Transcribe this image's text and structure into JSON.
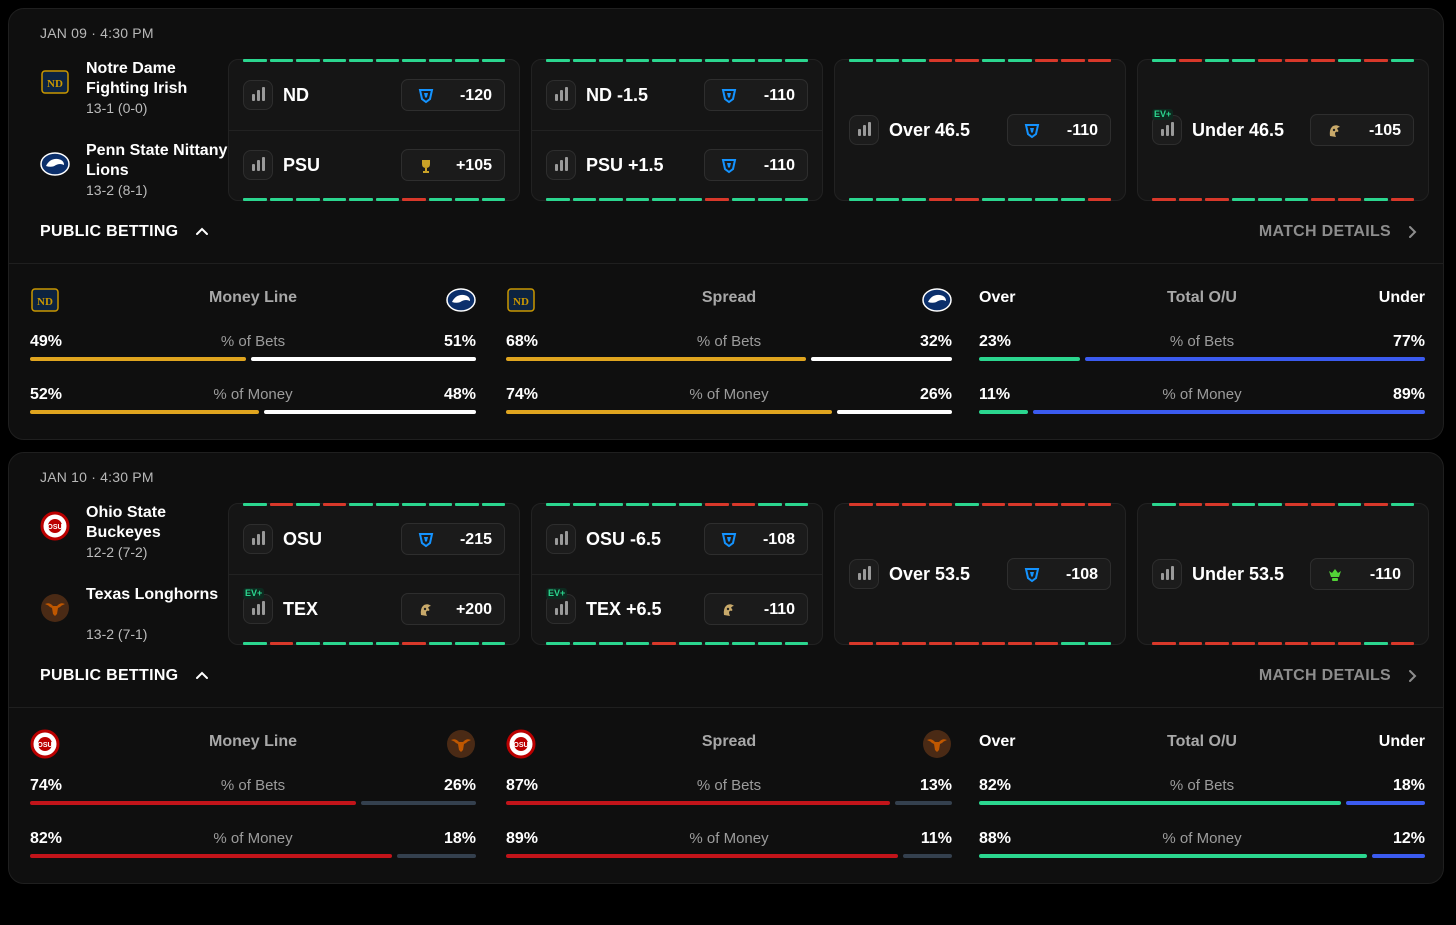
{
  "colors": {
    "green": "#2bd68f",
    "red": "#d8382a",
    "gold": "#e0a51f",
    "white": "#ffffff",
    "blue": "#3b5bf0",
    "crimson": "#c2141a",
    "slate": "#34404e"
  },
  "public_betting_label": "PUBLIC BETTING",
  "match_details_label": "MATCH DETAILS",
  "games": [
    {
      "date": "JAN 09 · 4:30 PM",
      "teams": [
        {
          "name": "Notre Dame Fighting Irish",
          "record": "13-1 (0-0)",
          "logo": "notre-dame-logo",
          "abbr": "ND"
        },
        {
          "name": "Penn State Nittany Lions",
          "record": "13-2 (8-1)",
          "logo": "penn-state-logo",
          "abbr": "PSU"
        }
      ],
      "markets": [
        {
          "rows": [
            {
              "label": "ND",
              "odds": "-120",
              "book": "fanduel-icon",
              "ev": ""
            },
            {
              "label": "PSU",
              "odds": "+105",
              "book": "trophy-icon",
              "ev": ""
            }
          ],
          "top": "gggggggggg",
          "bot": "ggggggrggg"
        },
        {
          "rows": [
            {
              "label": "ND -1.5",
              "odds": "-110",
              "book": "fanduel-icon",
              "ev": ""
            },
            {
              "label": "PSU +1.5",
              "odds": "-110",
              "book": "fanduel-icon",
              "ev": ""
            }
          ],
          "top": "gggggggggg",
          "bot": "ggggggrggg"
        },
        {
          "rows": [
            {
              "label": "Over 46.5",
              "odds": "-110",
              "book": "fanduel-icon",
              "ev": ""
            }
          ],
          "top": "gggrrggrrr",
          "bot": "gggrrggggr"
        },
        {
          "rows": [
            {
              "label": "Under 46.5",
              "odds": "-105",
              "book": "caesars-icon",
              "ev": "EV+"
            }
          ],
          "top": "grggrrrgrg",
          "bot": "rrrgggrrgr"
        }
      ],
      "public": [
        {
          "title": "Money Line",
          "left_logo": "notre-dame-logo",
          "right_logo": "penn-state-logo",
          "left_text": "",
          "right_text": "",
          "bets": {
            "label": "% of Bets",
            "left": "49%",
            "right": "51%",
            "lv": 49,
            "lc": "gold",
            "rc": "white"
          },
          "money": {
            "label": "% of Money",
            "left": "52%",
            "right": "48%",
            "lv": 52,
            "lc": "gold",
            "rc": "white"
          }
        },
        {
          "title": "Spread",
          "left_logo": "notre-dame-logo",
          "right_logo": "penn-state-logo",
          "left_text": "",
          "right_text": "",
          "bets": {
            "label": "% of Bets",
            "left": "68%",
            "right": "32%",
            "lv": 68,
            "lc": "gold",
            "rc": "white"
          },
          "money": {
            "label": "% of Money",
            "left": "74%",
            "right": "26%",
            "lv": 74,
            "lc": "gold",
            "rc": "white"
          }
        },
        {
          "title": "Total O/U",
          "left_logo": "",
          "right_logo": "",
          "left_text": "Over",
          "right_text": "Under",
          "bets": {
            "label": "% of Bets",
            "left": "23%",
            "right": "77%",
            "lv": 23,
            "lc": "green",
            "rc": "blue"
          },
          "money": {
            "label": "% of Money",
            "left": "11%",
            "right": "89%",
            "lv": 11,
            "lc": "green",
            "rc": "blue"
          }
        }
      ]
    },
    {
      "date": "JAN 10 · 4:30 PM",
      "teams": [
        {
          "name": "Ohio State Buckeyes",
          "record": "12-2 (7-2)",
          "logo": "ohio-state-logo",
          "abbr": "OSU"
        },
        {
          "name": "Texas Longhorns",
          "record": "13-2 (7-1)",
          "logo": "texas-logo",
          "abbr": "TEX"
        }
      ],
      "markets": [
        {
          "rows": [
            {
              "label": "OSU",
              "odds": "-215",
              "book": "fanduel-icon",
              "ev": ""
            },
            {
              "label": "TEX",
              "odds": "+200",
              "book": "caesars-icon",
              "ev": "EV+"
            }
          ],
          "top": "grgrgggggg",
          "bot": "grggggrggg"
        },
        {
          "rows": [
            {
              "label": "OSU -6.5",
              "odds": "-108",
              "book": "fanduel-icon",
              "ev": ""
            },
            {
              "label": "TEX +6.5",
              "odds": "-110",
              "book": "caesars-icon",
              "ev": "EV+"
            }
          ],
          "top": "ggggggrrgg",
          "bot": "ggggrggggg"
        },
        {
          "rows": [
            {
              "label": "Over 53.5",
              "odds": "-108",
              "book": "fanduel-icon",
              "ev": ""
            }
          ],
          "top": "rrrrgrrrrr",
          "bot": "rrrrrrrrgg"
        },
        {
          "rows": [
            {
              "label": "Under 53.5",
              "odds": "-110",
              "book": "draftkings-icon",
              "ev": ""
            }
          ],
          "top": "grrggrrgrg",
          "bot": "rrrrrrrrgr"
        }
      ],
      "public": [
        {
          "title": "Money Line",
          "left_logo": "ohio-state-logo",
          "right_logo": "texas-logo",
          "left_text": "",
          "right_text": "",
          "bets": {
            "label": "% of Bets",
            "left": "74%",
            "right": "26%",
            "lv": 74,
            "lc": "crimson",
            "rc": "slate"
          },
          "money": {
            "label": "% of Money",
            "left": "82%",
            "right": "18%",
            "lv": 82,
            "lc": "crimson",
            "rc": "slate"
          }
        },
        {
          "title": "Spread",
          "left_logo": "ohio-state-logo",
          "right_logo": "texas-logo",
          "left_text": "",
          "right_text": "",
          "bets": {
            "label": "% of Bets",
            "left": "87%",
            "right": "13%",
            "lv": 87,
            "lc": "crimson",
            "rc": "slate"
          },
          "money": {
            "label": "% of Money",
            "left": "89%",
            "right": "11%",
            "lv": 89,
            "lc": "crimson",
            "rc": "slate"
          }
        },
        {
          "title": "Total O/U",
          "left_logo": "",
          "right_logo": "",
          "left_text": "Over",
          "right_text": "Under",
          "bets": {
            "label": "% of Bets",
            "left": "82%",
            "right": "18%",
            "lv": 82,
            "lc": "green",
            "rc": "blue"
          },
          "money": {
            "label": "% of Money",
            "left": "88%",
            "right": "12%",
            "lv": 88,
            "lc": "green",
            "rc": "blue"
          }
        }
      ]
    }
  ]
}
